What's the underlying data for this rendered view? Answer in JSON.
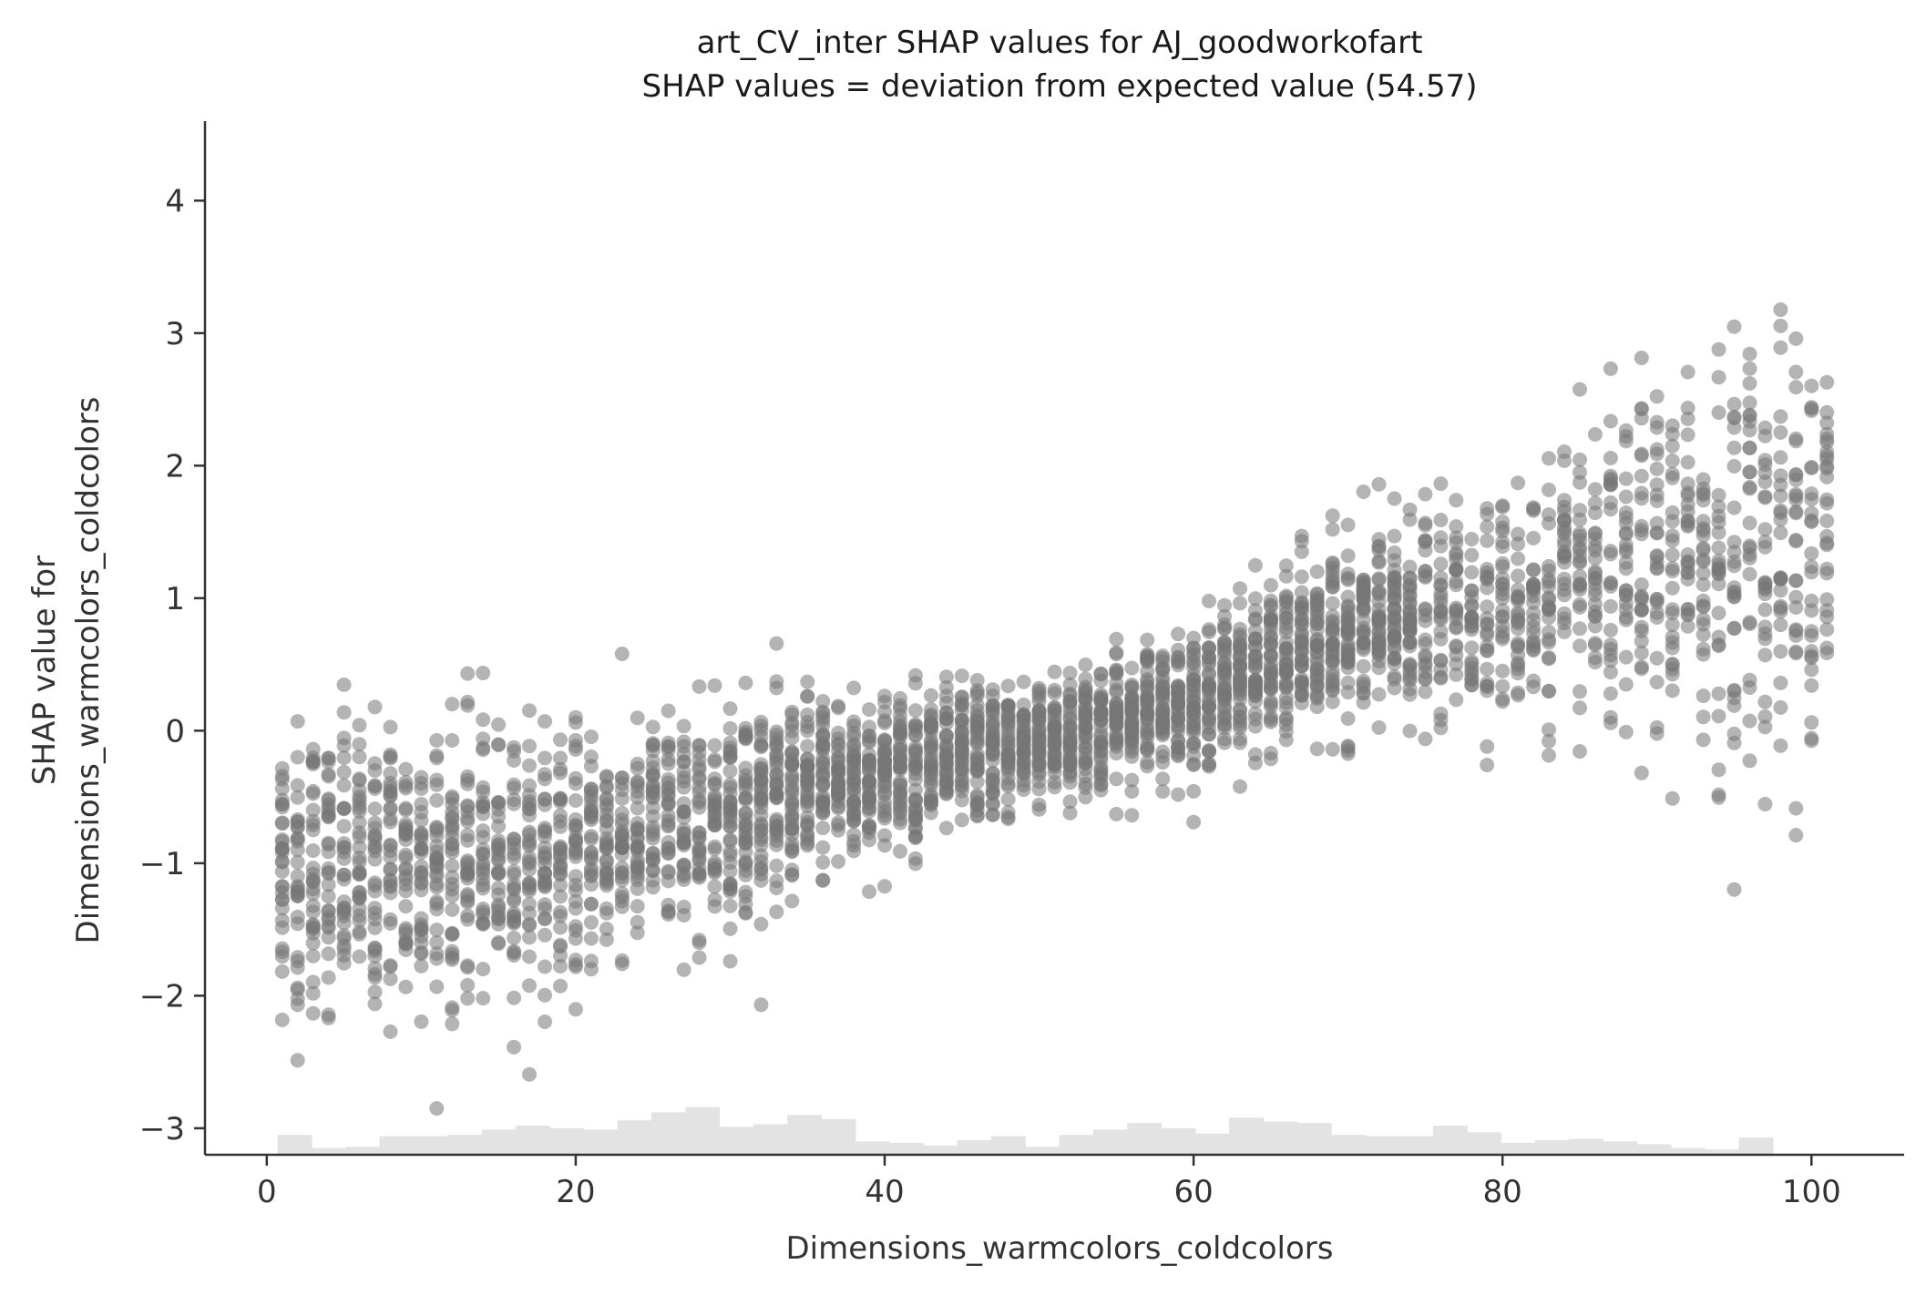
{
  "chart_data": {
    "type": "scatter",
    "title": "art_CV_inter SHAP values for AJ_goodworkofart",
    "subtitle": "SHAP values = deviation from expected value (54.57)",
    "xlabel": "Dimensions_warmcolors_coldcolors",
    "ylabel_line1": "SHAP value for",
    "ylabel_line2": "Dimensions_warmcolors_coldcolors",
    "xlim": [
      -4,
      106
    ],
    "ylim": [
      -3.2,
      4.6
    ],
    "x_ticks": [
      0,
      20,
      40,
      60,
      80,
      100
    ],
    "x_tick_labels": [
      "0",
      "20",
      "40",
      "60",
      "80",
      "100"
    ],
    "y_ticks": [
      -3,
      -2,
      -1,
      0,
      1,
      2,
      3,
      4
    ],
    "y_tick_labels": [
      "−3",
      "−2",
      "−1",
      "0",
      "1",
      "2",
      "3",
      "4"
    ],
    "grid": false,
    "point_color": "#777777",
    "histogram_color": "#e3e3e3",
    "trend": {
      "x": [
        1,
        10,
        20,
        30,
        40,
        50,
        60,
        70,
        80,
        90,
        101
      ],
      "y_center": [
        -1.05,
        -1.0,
        -0.95,
        -0.6,
        -0.3,
        -0.1,
        0.25,
        0.75,
        0.95,
        1.2,
        1.5
      ],
      "y_spread": [
        0.55,
        0.55,
        0.45,
        0.4,
        0.3,
        0.22,
        0.25,
        0.35,
        0.4,
        0.65,
        0.9
      ]
    },
    "histogram": {
      "bin_edges_start": 0.7,
      "bin_width": 2.2,
      "heights": [
        0.15,
        0.05,
        0.06,
        0.14,
        0.14,
        0.15,
        0.19,
        0.22,
        0.2,
        0.19,
        0.26,
        0.32,
        0.36,
        0.21,
        0.23,
        0.3,
        0.27,
        0.1,
        0.09,
        0.07,
        0.11,
        0.14,
        0.06,
        0.15,
        0.19,
        0.24,
        0.2,
        0.16,
        0.28,
        0.25,
        0.24,
        0.15,
        0.14,
        0.14,
        0.22,
        0.17,
        0.09,
        0.11,
        0.12,
        0.1,
        0.08,
        0.05,
        0.04,
        0.13
      ],
      "height_units": "fraction of -3 to -2 band"
    }
  }
}
